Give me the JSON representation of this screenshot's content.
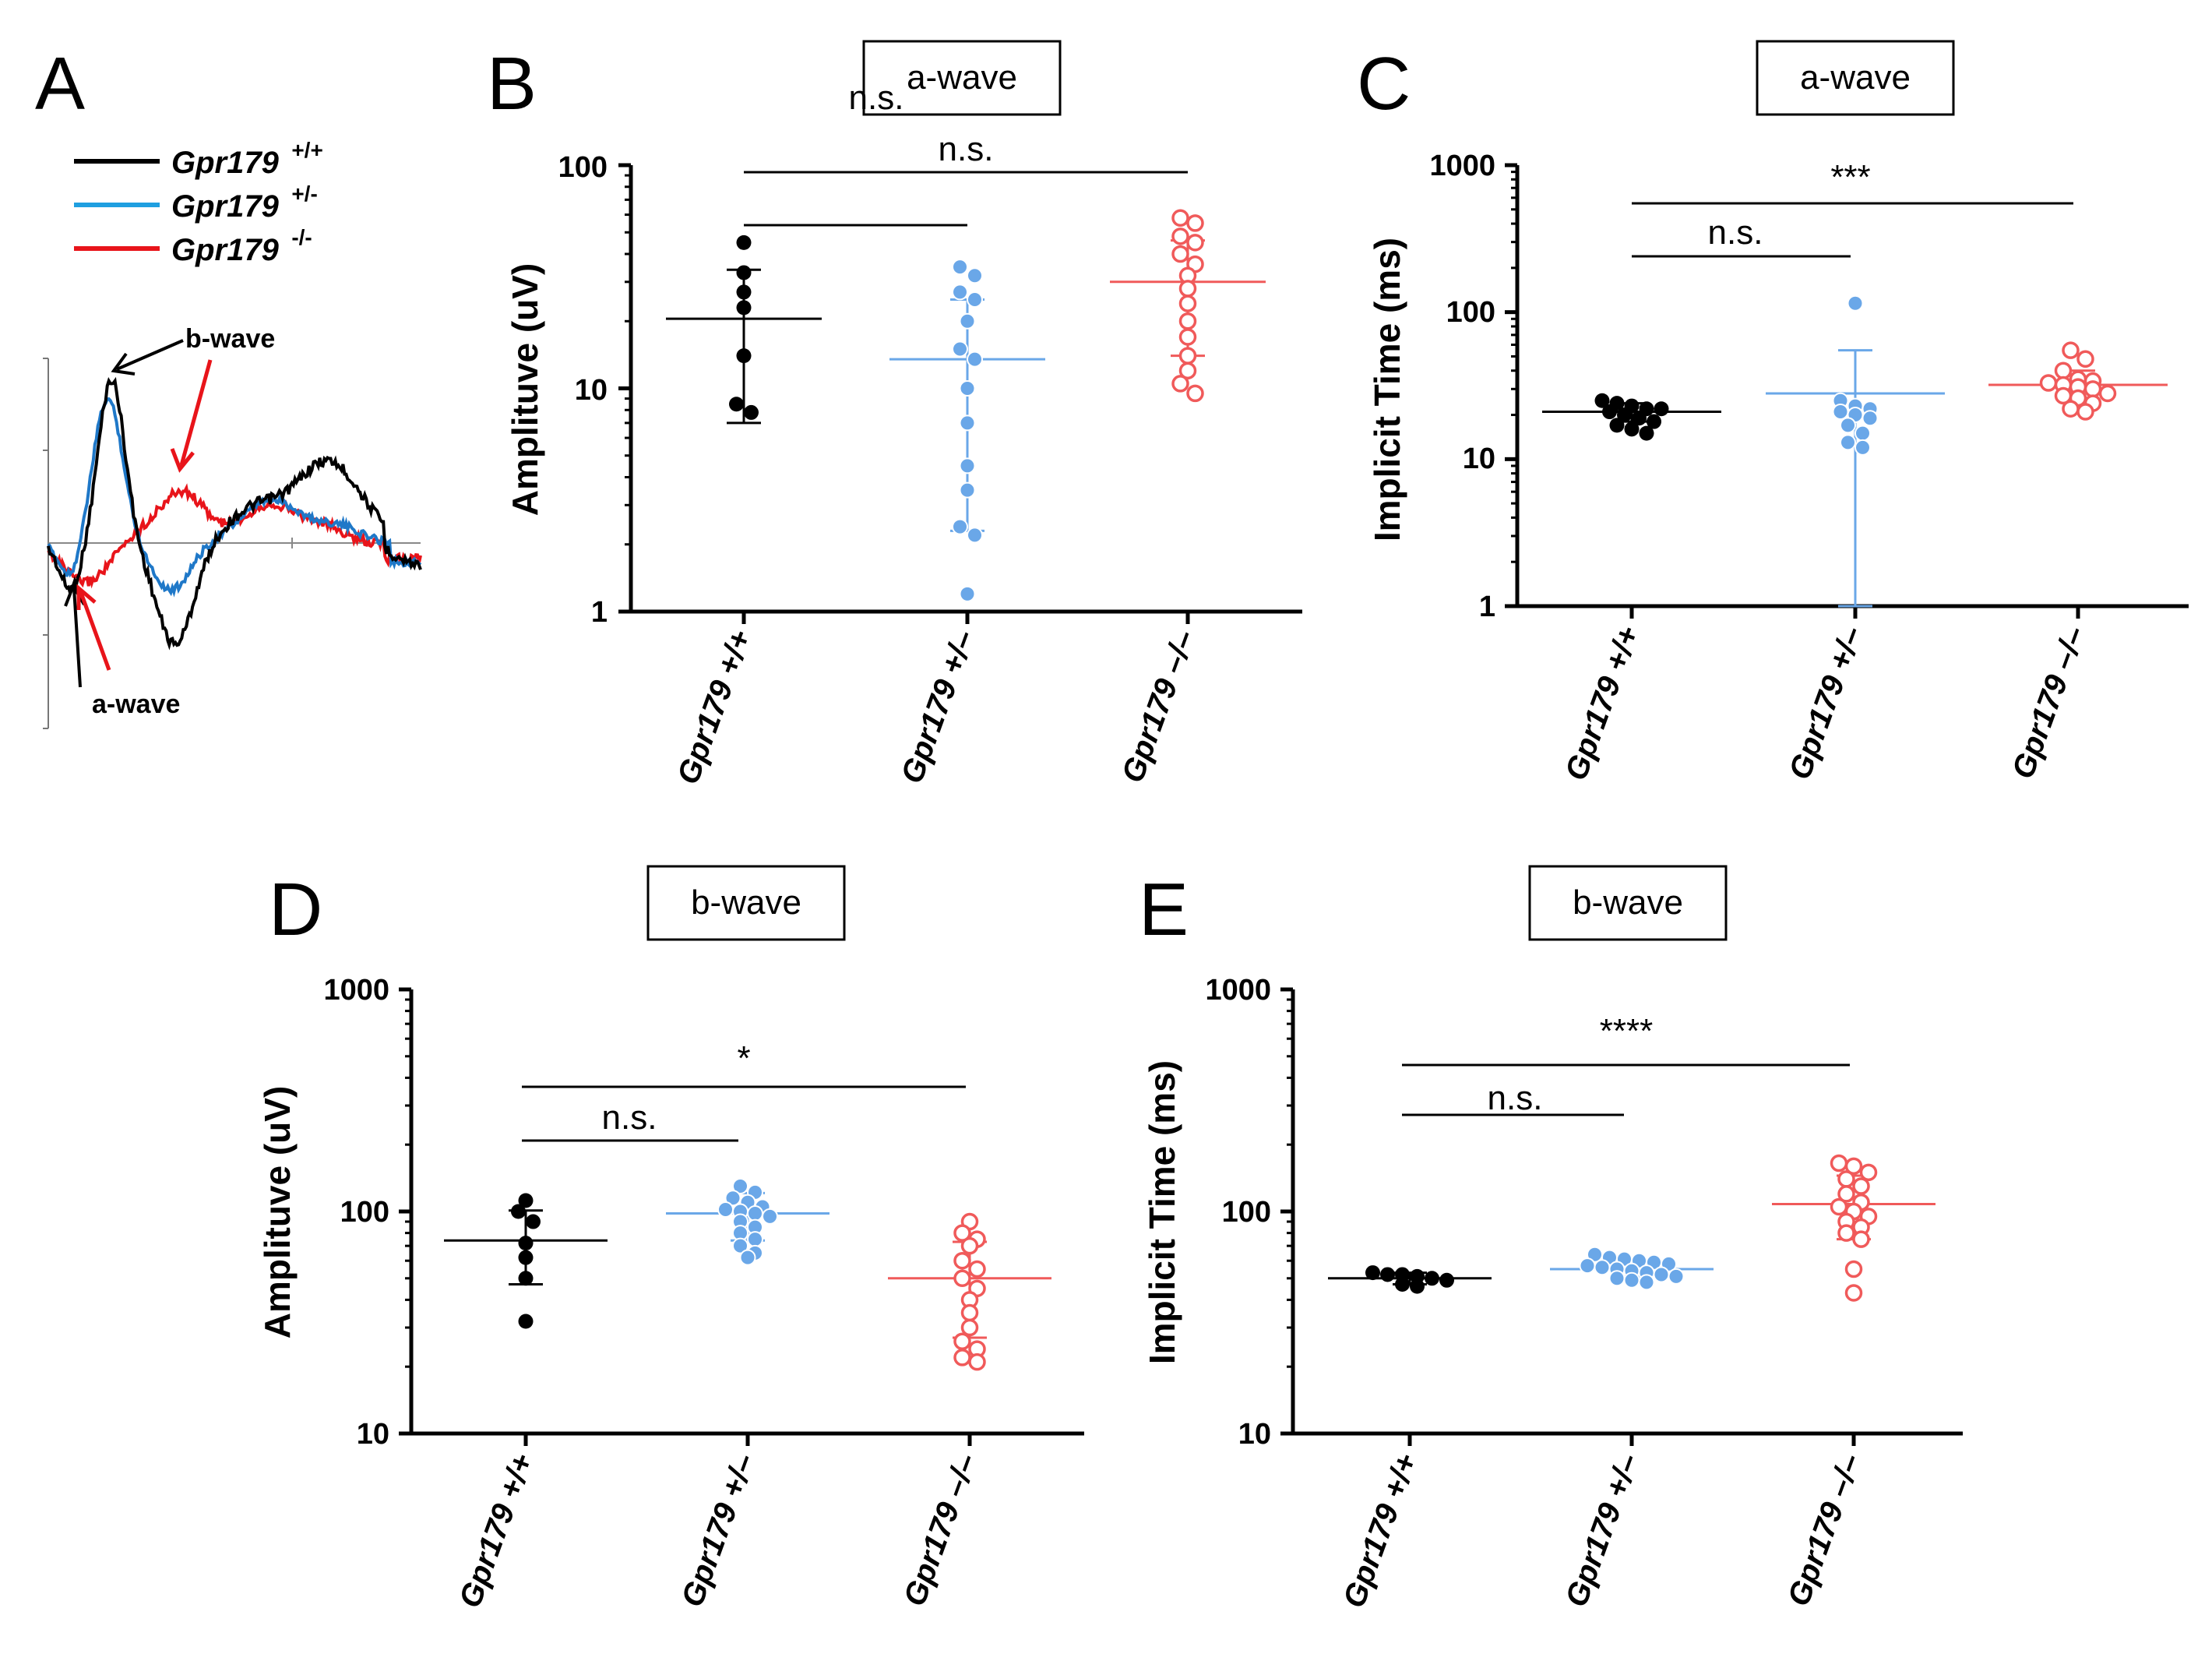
{
  "colors": {
    "wt": "#000000",
    "het": "#6aa7e8",
    "ko": "#f05a5a",
    "trace_het": "#1f78c8",
    "trace_ko": "#e8141a"
  },
  "panel_a": {
    "label": "A",
    "legend": [
      {
        "gene": "Gpr179",
        "genotype": "+/+",
        "color": "#000000"
      },
      {
        "gene": "Gpr179",
        "genotype": "+/-",
        "color": "#1f9fe0"
      },
      {
        "gene": "Gpr179",
        "genotype": "-/-",
        "color": "#e8141a"
      }
    ],
    "b_wave_label": "b-wave",
    "a_wave_label": "a-wave"
  },
  "chart_data": [
    {
      "panel": "B",
      "type": "scatter",
      "title": "a-wave",
      "ylabel": "Amplituve (uV)",
      "yscale": "log",
      "ylim": [
        1,
        100
      ],
      "yticks": [
        "1",
        "10",
        "100"
      ],
      "categories": [
        "Gpr179 +/+",
        "Gpr179 +/–",
        "Gpr179 –/–"
      ],
      "series": [
        {
          "name": "Gpr179 +/+",
          "mean": 20.5,
          "sd_low": 7,
          "sd_high": 34,
          "values": [
            45,
            33,
            27,
            23,
            14,
            8.5,
            7.8
          ]
        },
        {
          "name": "Gpr179 +/-",
          "mean": 13.5,
          "sd_low": 2.3,
          "sd_high": 25,
          "values": [
            35,
            32,
            27,
            25,
            20,
            15,
            13.5,
            10,
            7,
            4.5,
            3.5,
            2.4,
            2.2,
            1.2
          ]
        },
        {
          "name": "Gpr179 -/-",
          "mean": 30,
          "sd_low": 14,
          "sd_high": 46,
          "values": [
            58,
            55,
            48,
            45,
            40,
            36,
            32,
            28,
            24,
            20,
            17,
            14,
            12,
            10.5,
            9.5
          ]
        }
      ],
      "significance": [
        {
          "from": 0,
          "to": 1,
          "label": "n.s."
        },
        {
          "from": 0,
          "to": 2,
          "label": "n.s."
        }
      ]
    },
    {
      "panel": "C",
      "type": "scatter",
      "title": "a-wave",
      "ylabel": "Implicit Time (ms)",
      "yscale": "log",
      "ylim": [
        1,
        1000
      ],
      "yticks": [
        "1",
        "10",
        "100",
        "1000"
      ],
      "categories": [
        "Gpr179 +/+",
        "Gpr179 +/–",
        "Gpr179 –/–"
      ],
      "series": [
        {
          "name": "Gpr179 +/+",
          "mean": 21,
          "sd_low": 18,
          "sd_high": 24,
          "values": [
            24,
            23,
            22,
            22,
            21,
            20,
            19,
            18,
            17,
            16,
            15,
            25
          ]
        },
        {
          "name": "Gpr179 +/-",
          "mean": 28,
          "sd_low": 1,
          "sd_high": 55,
          "values": [
            115,
            25,
            23,
            22,
            21,
            20,
            19,
            17,
            15,
            13,
            12
          ]
        },
        {
          "name": "Gpr179 -/-",
          "mean": 32,
          "sd_low": 25,
          "sd_high": 40,
          "values": [
            55,
            48,
            40,
            35,
            34,
            33,
            32,
            31,
            30,
            28,
            27,
            26,
            24,
            22,
            21
          ]
        }
      ],
      "significance": [
        {
          "from": 0,
          "to": 1,
          "label": "n.s."
        },
        {
          "from": 0,
          "to": 2,
          "label": "***"
        }
      ]
    },
    {
      "panel": "D",
      "type": "scatter",
      "title": "b-wave",
      "ylabel": "Amplituve (uV)",
      "yscale": "log",
      "ylim": [
        10,
        1000
      ],
      "yticks": [
        "10",
        "100",
        "1000"
      ],
      "categories": [
        "Gpr179 +/+",
        "Gpr179 +/–",
        "Gpr179 –/–"
      ],
      "series": [
        {
          "name": "Gpr179 +/+",
          "mean": 74,
          "sd_low": 47,
          "sd_high": 101,
          "values": [
            112,
            100,
            90,
            72,
            62,
            50,
            32
          ]
        },
        {
          "name": "Gpr179 +/-",
          "mean": 98,
          "sd_low": 74,
          "sd_high": 121,
          "values": [
            130,
            122,
            115,
            110,
            105,
            102,
            100,
            98,
            95,
            90,
            85,
            80,
            75,
            70,
            65,
            62
          ]
        },
        {
          "name": "Gpr179 -/-",
          "mean": 50,
          "sd_low": 27,
          "sd_high": 73,
          "values": [
            90,
            80,
            75,
            70,
            60,
            55,
            50,
            45,
            40,
            35,
            30,
            26,
            24,
            22,
            21
          ]
        }
      ],
      "significance": [
        {
          "from": 0,
          "to": 1,
          "label": "n.s."
        },
        {
          "from": 0,
          "to": 2,
          "label": "*"
        }
      ]
    },
    {
      "panel": "E",
      "type": "scatter",
      "title": "b-wave",
      "ylabel": "Implicit Time (ms)",
      "yscale": "log",
      "ylim": [
        10,
        1000
      ],
      "yticks": [
        "10",
        "100",
        "1000"
      ],
      "categories": [
        "Gpr179 +/+",
        "Gpr179 +/–",
        "Gpr179 –/–"
      ],
      "series": [
        {
          "name": "Gpr179 +/+",
          "mean": 50,
          "sd_low": 47,
          "sd_high": 53,
          "values": [
            53,
            52,
            51,
            50,
            49,
            47,
            46,
            52
          ]
        },
        {
          "name": "Gpr179 +/-",
          "mean": 55,
          "sd_low": 51,
          "sd_high": 60,
          "values": [
            64,
            62,
            61,
            60,
            59,
            58,
            57,
            56,
            55,
            54,
            53,
            52,
            51,
            50,
            49,
            48
          ]
        },
        {
          "name": "Gpr179 -/-",
          "mean": 108,
          "sd_low": 75,
          "sd_high": 145,
          "values": [
            165,
            160,
            150,
            140,
            130,
            120,
            110,
            105,
            100,
            95,
            90,
            85,
            80,
            75,
            55,
            43
          ]
        }
      ],
      "significance": [
        {
          "from": 0,
          "to": 1,
          "label": "n.s."
        },
        {
          "from": 0,
          "to": 2,
          "label": "****"
        }
      ]
    }
  ]
}
